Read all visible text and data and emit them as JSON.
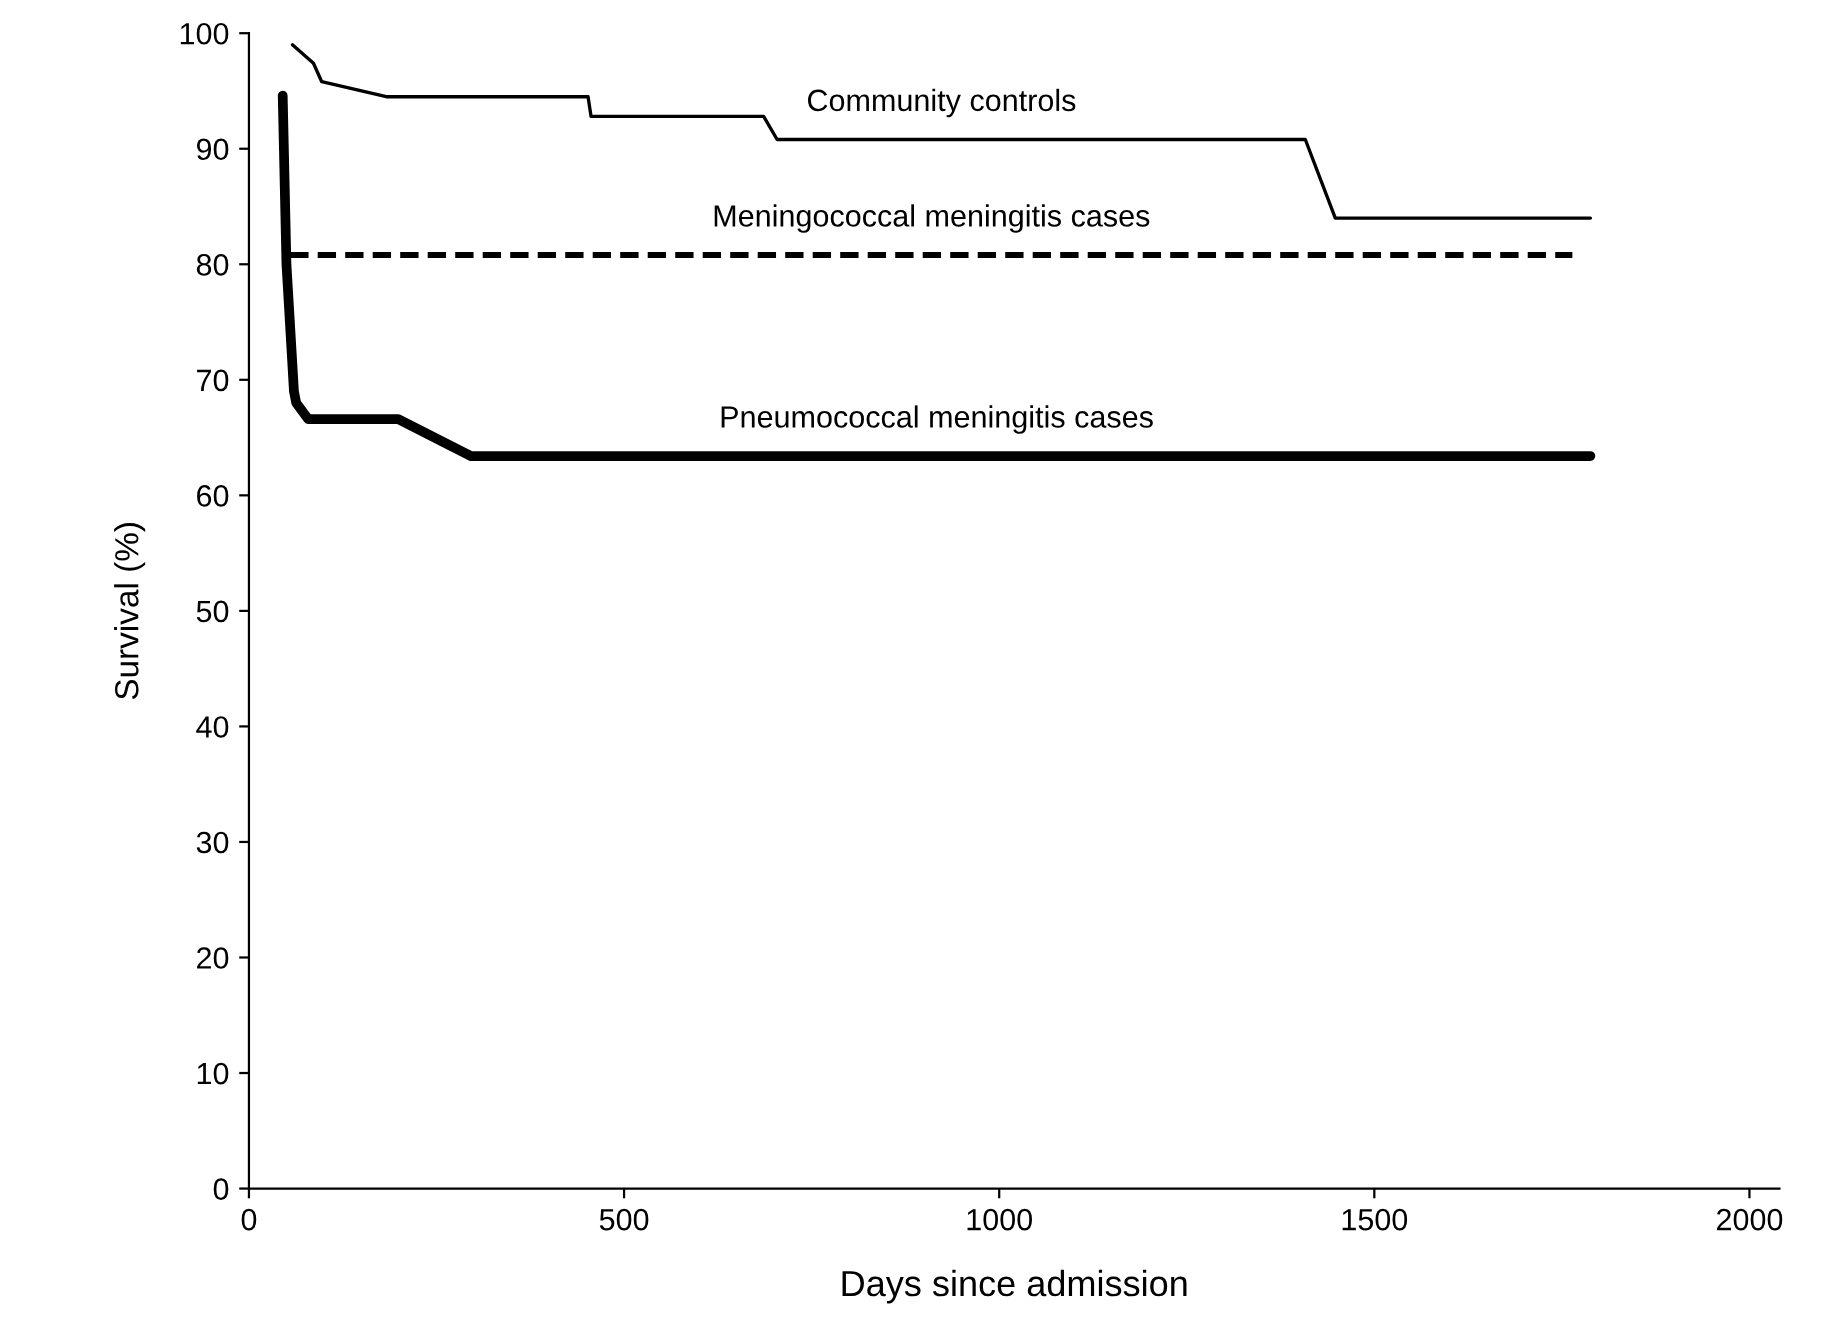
{
  "chart_data": {
    "type": "line",
    "xlabel": "Days since admission",
    "ylabel": "Survival (%)",
    "xlim": [
      0,
      2040
    ],
    "ylim": [
      0,
      100
    ],
    "xticks": [
      0,
      500,
      1000,
      1500,
      2000
    ],
    "yticks": [
      0,
      10,
      20,
      30,
      40,
      50,
      60,
      70,
      80,
      90,
      100
    ],
    "grid": false,
    "legend": false,
    "series": [
      {
        "name": "Community controls",
        "color": "#000000",
        "line_style": "solid",
        "x": [
          58,
          86,
          97,
          183,
          452,
          456,
          686,
          704,
          1408,
          1448,
          1788
        ],
        "values": [
          99,
          97.4,
          95.8,
          94.5,
          94.5,
          92.8,
          92.8,
          90.8,
          90.8,
          84,
          84
        ]
      },
      {
        "name": "Meningococcal meningitis cases",
        "color": "#000000",
        "line_style": "dashed",
        "x": [
          55,
          1764
        ],
        "values": [
          80.8,
          80.8
        ]
      },
      {
        "name": "Pneumococcal meningitis cases",
        "color": "#000000",
        "line_style": "solid",
        "x": [
          45,
          50,
          60,
          63,
          79,
          199,
          296,
          1788
        ],
        "values": [
          94.6,
          80,
          69,
          68,
          66.6,
          66.6,
          63.4,
          63.4
        ]
      }
    ]
  }
}
